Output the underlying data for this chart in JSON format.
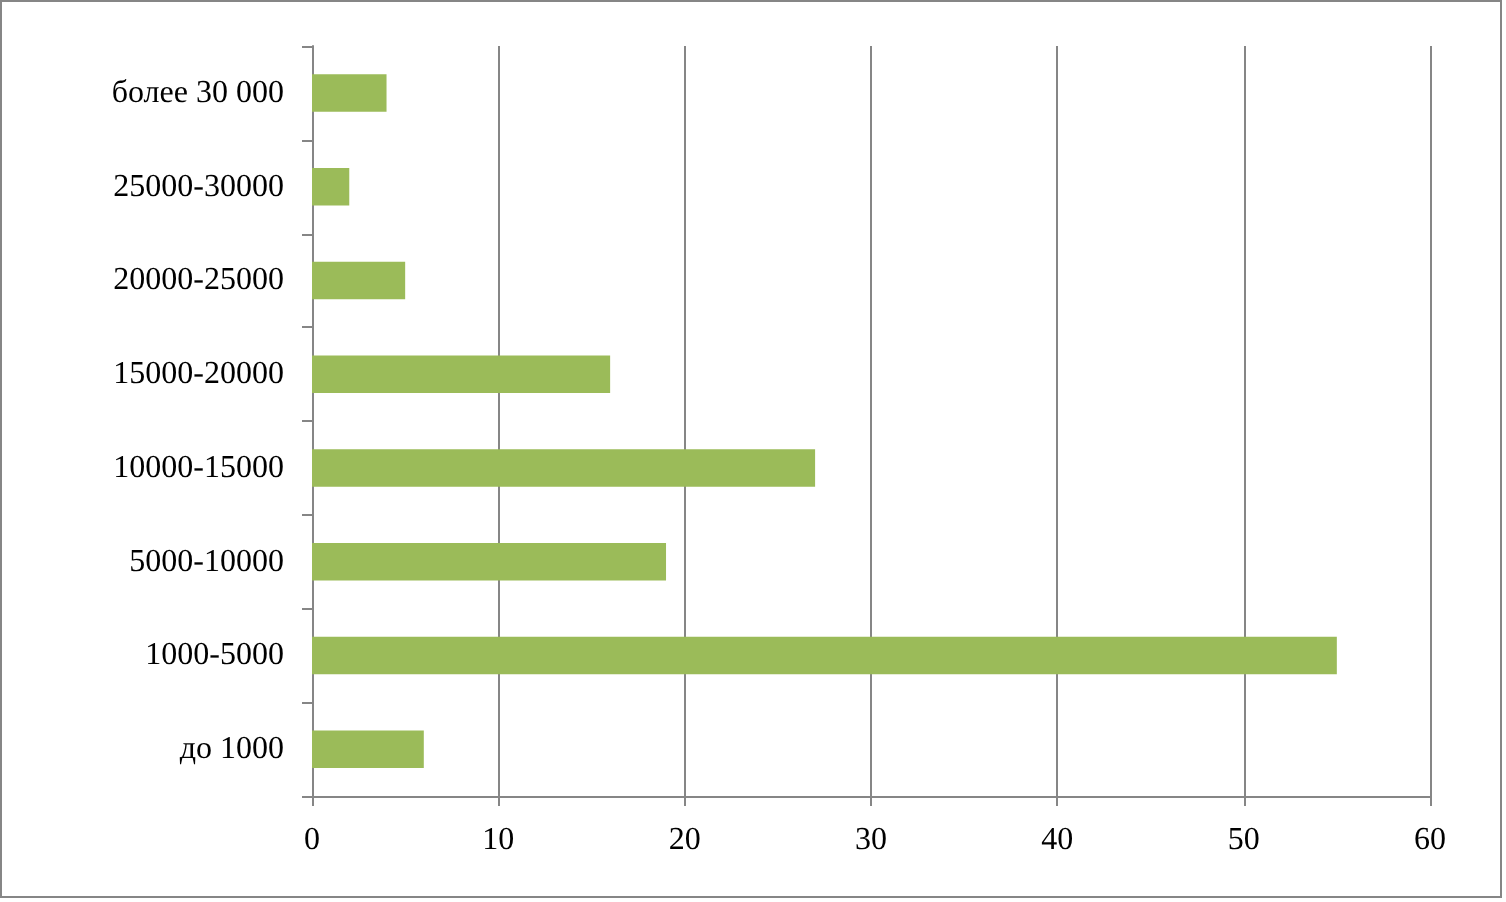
{
  "chart_data": {
    "type": "bar",
    "orientation": "horizontal",
    "categories": [
      "более 30 000",
      "25000-30000",
      "20000-25000",
      "15000-20000",
      "10000-15000",
      "5000-10000",
      "1000-5000",
      "до 1000"
    ],
    "values": [
      4,
      2,
      5,
      16,
      27,
      19,
      55,
      6
    ],
    "color": "#9bbb59",
    "xlim": [
      0,
      60
    ],
    "xticks": [
      0,
      10,
      20,
      30,
      40,
      50,
      60
    ],
    "grid": "x"
  }
}
